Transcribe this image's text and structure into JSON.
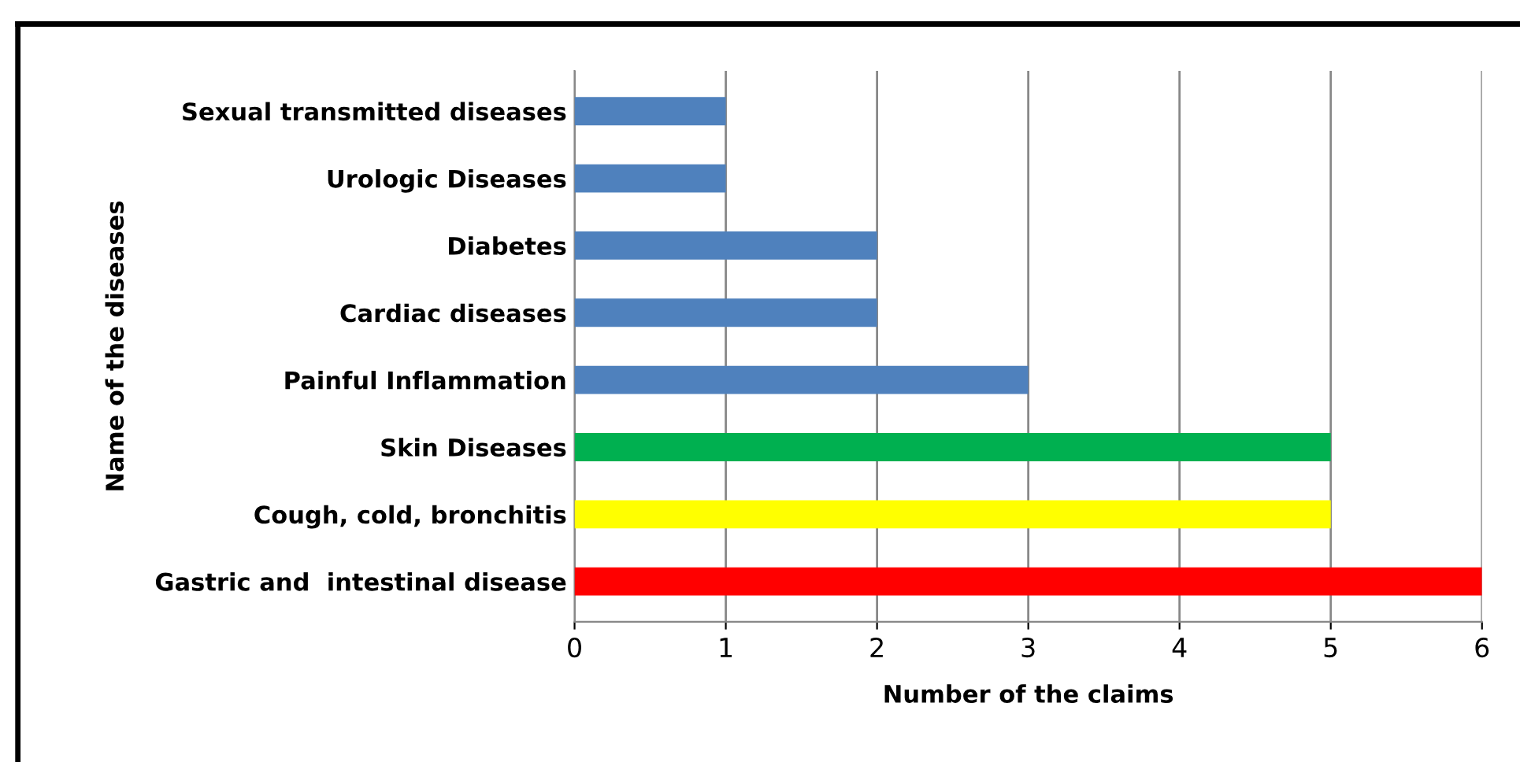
{
  "chart_data": {
    "type": "bar",
    "orientation": "horizontal",
    "xlabel": "Number of the claims",
    "ylabel": "Name of the diseases",
    "categories": [
      "Sexual transmitted diseases",
      "Urologic Diseases",
      "Diabetes",
      "Cardiac diseases",
      "Painful Inflammation",
      "Skin Diseases",
      "Cough, cold, bronchitis",
      "Gastric and  intestinal disease"
    ],
    "values": [
      1,
      1,
      2,
      2,
      3,
      5,
      5,
      6
    ],
    "colors": [
      "#4f81bd",
      "#4f81bd",
      "#4f81bd",
      "#4f81bd",
      "#4f81bd",
      "#00b050",
      "#ffff00",
      "#ff0000"
    ],
    "xlim": [
      0,
      6
    ],
    "xticks": [
      0,
      1,
      2,
      3,
      4,
      5,
      6
    ],
    "grid": "x",
    "legend": false
  }
}
